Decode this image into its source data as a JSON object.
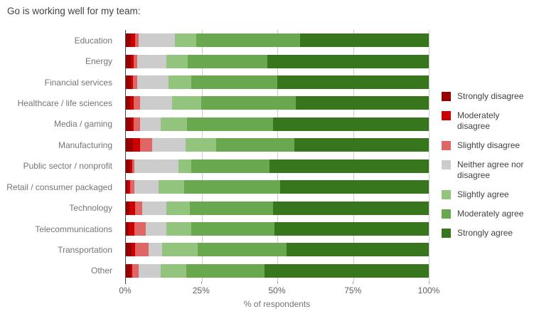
{
  "chart_data": {
    "type": "bar",
    "orientation": "horizontal",
    "stacked": true,
    "title": "Go is working well for my team:",
    "xlabel": "% of respondents",
    "ylabel": "",
    "xlim": [
      0,
      100
    ],
    "x_ticks": [
      "0%",
      "25%",
      "50%",
      "75%",
      "100%"
    ],
    "x_tick_values": [
      0,
      25,
      50,
      75,
      100
    ],
    "grid": true,
    "legend_position": "right",
    "categories": [
      "Education",
      "Energy",
      "Financial services",
      "Healthcare / life sciences",
      "Media / gaming",
      "Manufacturing",
      "Public sector / nonprofit",
      "Retail / consumer packaged",
      "Technology",
      "Telecommunications",
      "Transportation",
      "Other"
    ],
    "series": [
      {
        "name": "Strongly disagree",
        "color": "#990000",
        "values": [
          1.6,
          1.6,
          1.6,
          1.4,
          1.9,
          2.3,
          1.4,
          0.5,
          1.2,
          0.9,
          1.9,
          1.6
        ]
      },
      {
        "name": "Moderately disagree",
        "color": "#cc0000",
        "values": [
          1.4,
          0.9,
          0.7,
          1.2,
          0.7,
          2.3,
          0.7,
          0.9,
          1.9,
          1.9,
          1.2,
          0.5
        ]
      },
      {
        "name": "Slightly disagree",
        "color": "#e06666",
        "values": [
          1.2,
          1.2,
          1.4,
          2.1,
          2.1,
          4.2,
          0.7,
          1.4,
          2.3,
          3.7,
          4.4,
          2.1
        ]
      },
      {
        "name": "Neither agree nor disagree",
        "color": "#cccccc",
        "values": [
          12.1,
          9.8,
          10.3,
          10.5,
          6.8,
          11.0,
          14.5,
          7.9,
          7.9,
          6.8,
          4.4,
          7.2
        ]
      },
      {
        "name": "Slightly agree",
        "color": "#93c47d",
        "values": [
          7.0,
          7.0,
          7.5,
          9.6,
          8.6,
          10.0,
          4.4,
          8.6,
          7.9,
          8.2,
          11.7,
          8.6
        ]
      },
      {
        "name": "Moderately agree",
        "color": "#6aa84f",
        "values": [
          34.2,
          26.2,
          28.5,
          31.3,
          28.5,
          25.9,
          25.7,
          31.6,
          27.4,
          27.6,
          29.4,
          25.8
        ]
      },
      {
        "name": "Strongly agree",
        "color": "#38761d",
        "values": [
          42.5,
          53.3,
          50.0,
          43.9,
          51.4,
          44.3,
          52.6,
          49.1,
          51.4,
          50.9,
          47.0,
          54.2
        ]
      }
    ]
  }
}
